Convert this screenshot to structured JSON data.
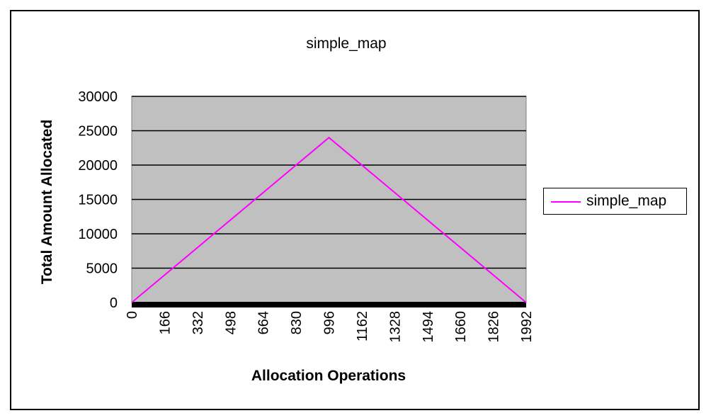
{
  "chart_data": {
    "type": "line",
    "title": "simple_map",
    "xlabel": "Allocation Operations",
    "ylabel": "Total Amount Allocated",
    "x_tick_labels": [
      "0",
      "166",
      "332",
      "498",
      "664",
      "830",
      "996",
      "1162",
      "1328",
      "1494",
      "1660",
      "1826",
      "1992"
    ],
    "y_tick_labels": [
      "0",
      "5000",
      "10000",
      "15000",
      "20000",
      "25000",
      "30000"
    ],
    "xlim": [
      0,
      1992
    ],
    "ylim": [
      0,
      30000
    ],
    "grid": "horizontal",
    "legend_position": "right",
    "plot_background": "#c0c0c0",
    "series": [
      {
        "name": "simple_map",
        "color": "#ff00ff",
        "x": [
          0,
          996,
          1992
        ],
        "y": [
          0,
          24000,
          0
        ]
      }
    ]
  }
}
